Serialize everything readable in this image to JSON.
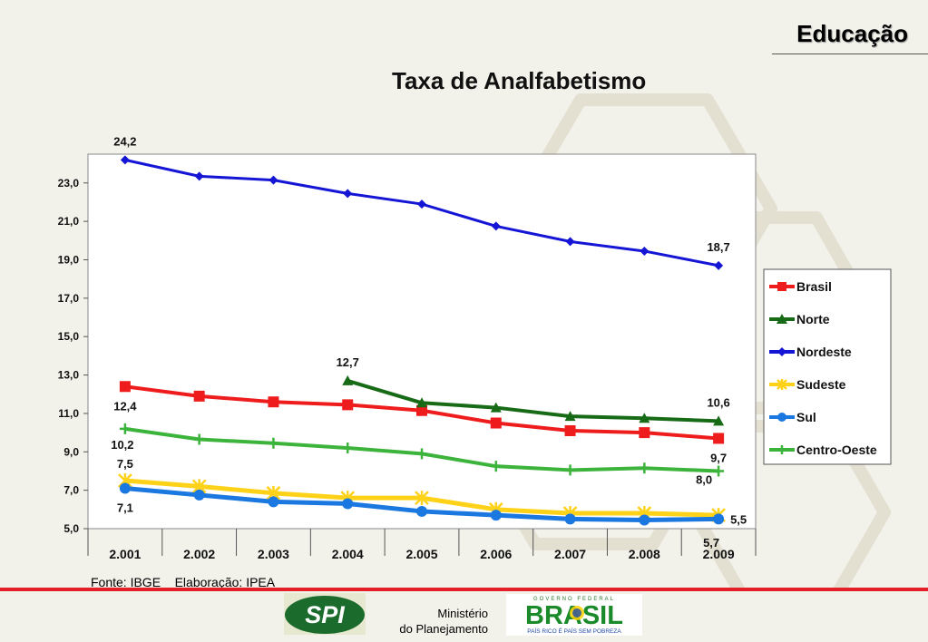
{
  "header": {
    "section_title": "Educação"
  },
  "source_note": "Fonte: IBGE    Elaboração: IPEA",
  "footer": {
    "spi_logo_text": "SPI",
    "ministry_line1": "Ministério",
    "ministry_line2": "do Planejamento",
    "brasil_logo_top": "GOVERNO FEDERAL",
    "brasil_logo_main": "BRASIL",
    "brasil_logo_tagline": "PAÍS RICO É PAÍS SEM POBREZA"
  },
  "colors": {
    "brasil": "#ee1c1c",
    "norte": "#176b17",
    "nordeste": "#1515d6",
    "sudeste": "#ffd21a",
    "sul": "#1a78e0",
    "centro_oeste": "#3cb43c",
    "footer_rule": "#e32028"
  },
  "chart_data": {
    "type": "line",
    "title": "Taxa de Analfabetismo",
    "xlabel": "",
    "ylabel": "",
    "categories": [
      "2.001",
      "2.002",
      "2.003",
      "2.004",
      "2.005",
      "2.006",
      "2.007",
      "2.008",
      "2.009"
    ],
    "yticks": [
      "5,0",
      "7,0",
      "9,0",
      "11,0",
      "13,0",
      "15,0",
      "17,0",
      "19,0",
      "21,0",
      "23,0"
    ],
    "ylim": [
      5,
      24.5
    ],
    "grid": false,
    "legend_position": "right",
    "series": [
      {
        "name": "Brasil",
        "marker": "square",
        "color": "#ee1c1c",
        "values": [
          12.4,
          11.9,
          11.6,
          11.45,
          11.15,
          10.5,
          10.1,
          10.0,
          9.7
        ],
        "labels": [
          {
            "index": 0,
            "text": "12,4"
          },
          {
            "index": 8,
            "text": "9,7"
          }
        ]
      },
      {
        "name": "Norte",
        "marker": "triangle",
        "color": "#176b17",
        "values": [
          null,
          null,
          null,
          12.7,
          11.55,
          11.3,
          10.85,
          10.75,
          10.6
        ],
        "labels": [
          {
            "index": 3,
            "text": "12,7"
          },
          {
            "index": 8,
            "text": "10,6"
          }
        ]
      },
      {
        "name": "Nordeste",
        "marker": "diamond",
        "color": "#1515d6",
        "values": [
          24.2,
          23.35,
          23.15,
          22.45,
          21.9,
          20.75,
          19.95,
          19.45,
          18.7
        ],
        "labels": [
          {
            "index": 0,
            "text": "24,2"
          },
          {
            "index": 8,
            "text": "18,7"
          }
        ]
      },
      {
        "name": "Sudeste",
        "marker": "star",
        "color": "#ffd21a",
        "values": [
          7.5,
          7.2,
          6.85,
          6.6,
          6.6,
          6.0,
          5.8,
          5.8,
          5.7
        ],
        "labels": [
          {
            "index": 0,
            "text": "7,5"
          },
          {
            "index": 8,
            "text": "5,7"
          }
        ]
      },
      {
        "name": "Sul",
        "marker": "circle",
        "color": "#1a78e0",
        "values": [
          7.1,
          6.75,
          6.4,
          6.3,
          5.9,
          5.7,
          5.5,
          5.45,
          5.5
        ],
        "labels": [
          {
            "index": 0,
            "text": "7,1"
          },
          {
            "index": 8,
            "text": "5,5"
          }
        ]
      },
      {
        "name": "Centro-Oeste",
        "marker": "plus",
        "color": "#3cb43c",
        "values": [
          10.2,
          9.65,
          9.45,
          9.2,
          8.9,
          8.25,
          8.05,
          8.15,
          8.0
        ],
        "labels": [
          {
            "index": 0,
            "text": "10,2"
          },
          {
            "index": 8,
            "text": "8,0"
          }
        ]
      }
    ]
  }
}
